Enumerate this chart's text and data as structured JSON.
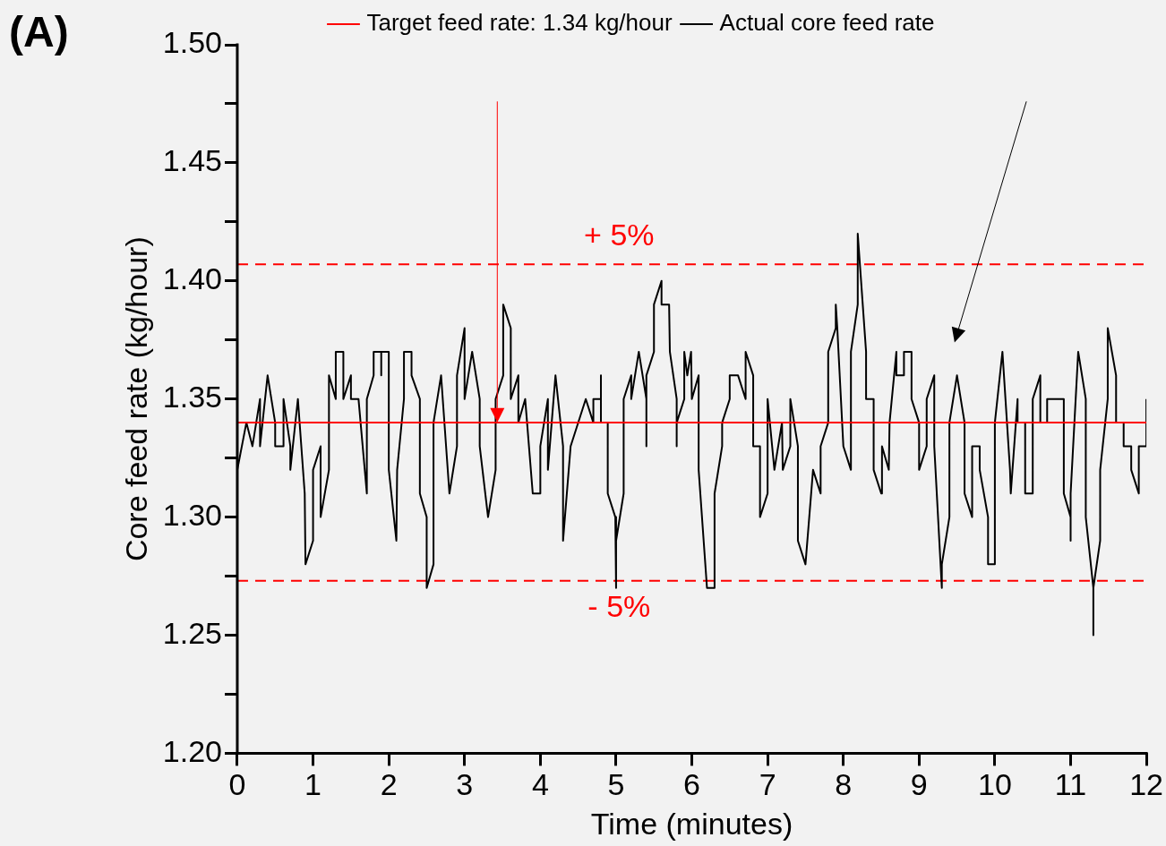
{
  "chart_data": {
    "type": "line",
    "xlabel": "Time (minutes)",
    "ylabel": "Core feed rate (kg/hour)",
    "xlim": [
      0,
      12
    ],
    "xticks": [
      0,
      1,
      2,
      3,
      4,
      5,
      6,
      7,
      8,
      9,
      10,
      11,
      12
    ],
    "ylim": [
      1.2,
      1.5
    ],
    "yticks": [
      {
        "value": 1.2,
        "label": "1.20"
      },
      {
        "value": 1.225,
        "label": null
      },
      1.25,
      {
        "value": 1.275,
        "label": null
      },
      {
        "value": 1.3,
        "label": "1.30"
      },
      {
        "value": 1.325,
        "label": null
      },
      1.35,
      {
        "value": 1.375,
        "label": null
      },
      {
        "value": 1.4,
        "label": "1.40"
      },
      {
        "value": 1.425,
        "label": null
      },
      1.45,
      {
        "value": 1.475,
        "label": null
      },
      {
        "value": 1.5,
        "label": "1.50"
      }
    ],
    "grid": false,
    "legend": "top",
    "marker": "none",
    "series": [
      {
        "name": "Target feed rate: 1.34 kg/hour",
        "color": "#ff0000",
        "x": [
          0,
          12
        ],
        "values": [
          1.34,
          1.34
        ]
      },
      {
        "name": "Actual core feed rate",
        "color": "#000000",
        "x": [
          0,
          0.12,
          0.2,
          0.3,
          0.3,
          0.4,
          0.5,
          0.5,
          0.61,
          0.61,
          0.7,
          0.7,
          0.8,
          0.89,
          0.9,
          1,
          1,
          1.1,
          1.1,
          1.21,
          1.21,
          1.3,
          1.3,
          1.4,
          1.4,
          1.5,
          1.5,
          1.6,
          1.71,
          1.71,
          1.8,
          1.8,
          1.9,
          1.9,
          1.9,
          2,
          2,
          2.1,
          2.11,
          2.2,
          2.2,
          2.3,
          2.3,
          2.41,
          2.41,
          2.5,
          2.5,
          2.59,
          2.59,
          2.69,
          2.8,
          2.9,
          2.9,
          3,
          3,
          3.1,
          3.2,
          3.2,
          3.31,
          3.41,
          3.41,
          3.51,
          3.51,
          3.61,
          3.61,
          3.71,
          3.71,
          3.8,
          3.9,
          4,
          4,
          4.1,
          4.1,
          4.2,
          4.3,
          4.3,
          4.4,
          4.6,
          4.7,
          4.7,
          4.8,
          4.8,
          4.8,
          4.89,
          4.89,
          4.99,
          5,
          5,
          5.1,
          5.1,
          5.2,
          5.2,
          5.3,
          5.4,
          5.4,
          5.4,
          5.5,
          5.5,
          5.6,
          5.6,
          5.7,
          5.71,
          5.8,
          5.8,
          5.8,
          5.9,
          5.9,
          5.94,
          5.99,
          6,
          6.09,
          6.09,
          6.2,
          6.3,
          6.3,
          6.4,
          6.4,
          6.5,
          6.5,
          6.61,
          6.71,
          6.71,
          6.81,
          6.81,
          6.9,
          6.9,
          7,
          7,
          7.09,
          7.19,
          7.2,
          7.3,
          7.3,
          7.4,
          7.4,
          7.5,
          7.6,
          7.7,
          7.7,
          7.8,
          7.8,
          7.9,
          7.9,
          7.92,
          8,
          8.1,
          8.1,
          8.19,
          8.19,
          8.3,
          8.3,
          8.4,
          8.4,
          8.5,
          8.51,
          8.6,
          8.61,
          8.7,
          8.7,
          8.8,
          8.8,
          8.9,
          8.9,
          9,
          9,
          9.1,
          9.1,
          9.2,
          9.2,
          9.3,
          9.3,
          9.4,
          9.4,
          9.5,
          9.6,
          9.6,
          9.7,
          9.7,
          9.8,
          9.8,
          9.91,
          9.91,
          10,
          10,
          10.1,
          10.2,
          10.21,
          10.3,
          10.3,
          10.4,
          10.4,
          10.5,
          10.5,
          10.6,
          10.6,
          10.69,
          10.69,
          10.91,
          10.91,
          11,
          11,
          11,
          11.1,
          11.2,
          11.2,
          11.3,
          11.3,
          11.3,
          11.39,
          11.39,
          11.49,
          11.49,
          11.6,
          11.6,
          11.7,
          11.7,
          11.8,
          11.8,
          11.9,
          11.9,
          12,
          12
        ],
        "values": [
          1.32,
          1.34,
          1.33,
          1.35,
          1.33,
          1.36,
          1.34,
          1.33,
          1.33,
          1.35,
          1.33,
          1.32,
          1.35,
          1.31,
          1.28,
          1.29,
          1.32,
          1.33,
          1.3,
          1.32,
          1.36,
          1.35,
          1.37,
          1.37,
          1.35,
          1.36,
          1.35,
          1.35,
          1.31,
          1.35,
          1.36,
          1.37,
          1.37,
          1.36,
          1.37,
          1.37,
          1.32,
          1.29,
          1.32,
          1.35,
          1.37,
          1.37,
          1.36,
          1.35,
          1.31,
          1.3,
          1.27,
          1.28,
          1.34,
          1.36,
          1.31,
          1.33,
          1.36,
          1.38,
          1.35,
          1.37,
          1.35,
          1.33,
          1.3,
          1.32,
          1.35,
          1.36,
          1.39,
          1.38,
          1.35,
          1.36,
          1.34,
          1.35,
          1.31,
          1.31,
          1.33,
          1.35,
          1.32,
          1.36,
          1.33,
          1.29,
          1.33,
          1.35,
          1.34,
          1.35,
          1.35,
          1.36,
          1.34,
          1.34,
          1.31,
          1.3,
          1.27,
          1.29,
          1.31,
          1.35,
          1.36,
          1.35,
          1.37,
          1.35,
          1.33,
          1.36,
          1.37,
          1.39,
          1.4,
          1.39,
          1.39,
          1.37,
          1.35,
          1.33,
          1.34,
          1.35,
          1.37,
          1.36,
          1.37,
          1.35,
          1.36,
          1.32,
          1.27,
          1.27,
          1.31,
          1.33,
          1.34,
          1.35,
          1.36,
          1.36,
          1.35,
          1.37,
          1.36,
          1.33,
          1.33,
          1.3,
          1.31,
          1.35,
          1.32,
          1.34,
          1.32,
          1.33,
          1.35,
          1.33,
          1.29,
          1.28,
          1.32,
          1.31,
          1.33,
          1.34,
          1.37,
          1.38,
          1.39,
          1.38,
          1.33,
          1.32,
          1.37,
          1.39,
          1.42,
          1.37,
          1.35,
          1.35,
          1.32,
          1.31,
          1.33,
          1.32,
          1.34,
          1.37,
          1.36,
          1.36,
          1.37,
          1.37,
          1.35,
          1.34,
          1.32,
          1.33,
          1.35,
          1.36,
          1.33,
          1.27,
          1.28,
          1.3,
          1.34,
          1.36,
          1.34,
          1.31,
          1.3,
          1.33,
          1.33,
          1.32,
          1.3,
          1.28,
          1.28,
          1.34,
          1.37,
          1.32,
          1.31,
          1.35,
          1.34,
          1.34,
          1.31,
          1.31,
          1.35,
          1.36,
          1.34,
          1.34,
          1.35,
          1.35,
          1.31,
          1.3,
          1.29,
          1.31,
          1.37,
          1.35,
          1.3,
          1.27,
          1.25,
          1.27,
          1.29,
          1.32,
          1.35,
          1.38,
          1.36,
          1.34,
          1.34,
          1.33,
          1.33,
          1.32,
          1.31,
          1.33,
          1.33,
          1.35
        ]
      }
    ],
    "ref_lines": [
      {
        "axis": "y",
        "value": 1.407,
        "color": "#ff0000",
        "line_style": "dashed"
      },
      {
        "axis": "y",
        "value": 1.273,
        "color": "#ff0000",
        "line_style": "dashed"
      }
    ],
    "annotations": [
      "(A)",
      "+ 5%",
      "- 5%"
    ]
  }
}
